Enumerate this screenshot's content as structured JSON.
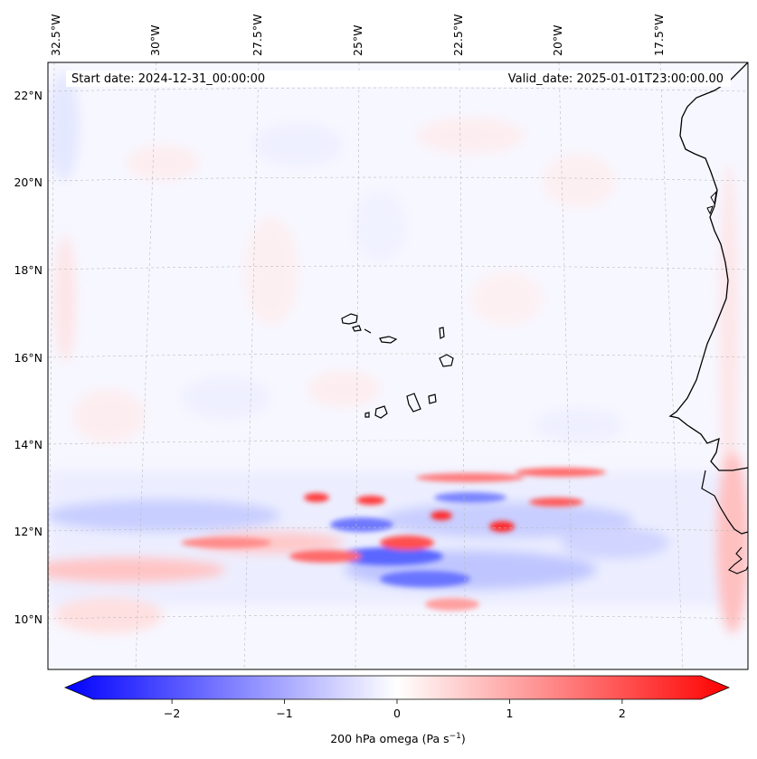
{
  "map": {
    "start_date": "Start date: 2024-12-31_00:00:00",
    "valid_date": "Valid_date: 2025-01-01T23:00:00.00",
    "lon_labels": [
      "32.5°W",
      "30°W",
      "27.5°W",
      "25°W",
      "22.5°W",
      "20°W",
      "17.5°W"
    ],
    "lat_labels": [
      "22°N",
      "20°N",
      "18°N",
      "16°N",
      "14°N",
      "12°N",
      "10°N"
    ]
  },
  "colorbar": {
    "label": "200 hPa omega (Pa s",
    "label_sup": "−1",
    "label_close": ")",
    "ticks": [
      "−2",
      "−1",
      "0",
      "1",
      "2"
    ],
    "range": [
      -2.7,
      2.7
    ],
    "colors": {
      "negative": "#0000ff",
      "neutral": "#ffffff",
      "positive": "#ff0000"
    }
  }
}
